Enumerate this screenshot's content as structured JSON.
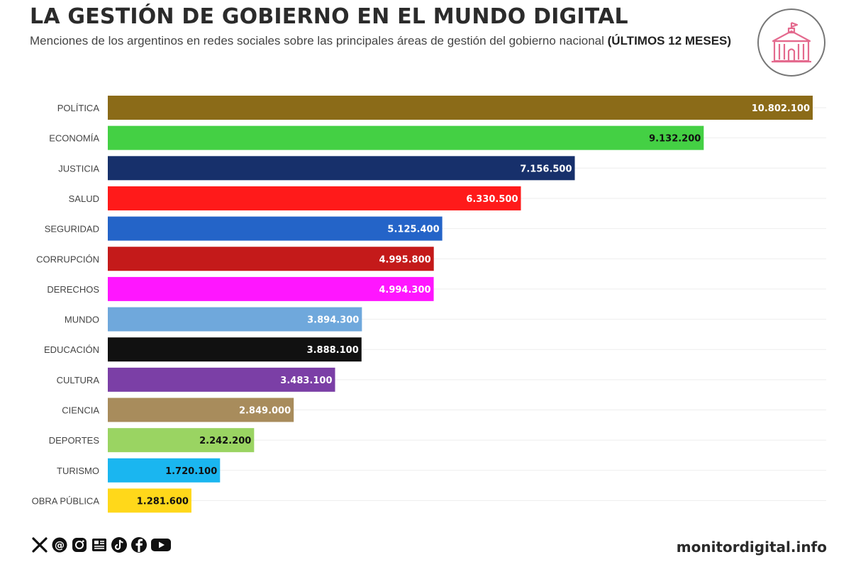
{
  "header": {
    "title": "LA GESTIÓN DE GOBIERNO EN EL MUNDO DIGITAL",
    "subtitle": "Menciones de los argentinos en redes sociales sobre las principales áreas de gestión del gobierno nacional",
    "subtitle_bold": "(ÚLTIMOS 12 MESES)"
  },
  "logo": {
    "icon": "government-building-icon",
    "color": "#e46a8e"
  },
  "social_icons": [
    "x-icon",
    "threads-icon",
    "instagram-icon",
    "news-icon",
    "tiktok-icon",
    "facebook-icon",
    "youtube-icon"
  ],
  "footer": {
    "site": "monitordigital.info"
  },
  "chart_data": {
    "type": "bar",
    "orientation": "horizontal",
    "categories": [
      "POLÍTICA",
      "ECONOMÍA",
      "JUSTICIA",
      "SALUD",
      "SEGURIDAD",
      "CORRUPCIÓN",
      "DERECHOS",
      "MUNDO",
      "EDUCACIÓN",
      "CULTURA",
      "CIENCIA",
      "DEPORTES",
      "TURISMO",
      "OBRA PÚBLICA"
    ],
    "values": [
      10802100,
      9132200,
      7156500,
      6330500,
      5125400,
      4995800,
      4994300,
      3894300,
      3888100,
      3483100,
      2849000,
      2242200,
      1720100,
      1281600
    ],
    "value_labels": [
      "10.802.100",
      "9.132.200",
      "7.156.500",
      "6.330.500",
      "5.125.400",
      "4.995.800",
      "4.994.300",
      "3.894.300",
      "3.888.100",
      "3.483.100",
      "2.849.000",
      "2.242.200",
      "1.720.100",
      "1.281.600"
    ],
    "colors": [
      "#8b6b18",
      "#44d044",
      "#17306b",
      "#ff1a1a",
      "#2464c8",
      "#c41a1a",
      "#ff16ff",
      "#6fa8dc",
      "#111111",
      "#7b3fa6",
      "#a88c5c",
      "#9ad462",
      "#1ab6f0",
      "#ffd81a"
    ],
    "label_colors": [
      "#ffffff",
      "#111111",
      "#ffffff",
      "#ffffff",
      "#ffffff",
      "#ffffff",
      "#ffffff",
      "#ffffff",
      "#ffffff",
      "#ffffff",
      "#ffffff",
      "#111111",
      "#111111",
      "#111111"
    ],
    "xlim": [
      0,
      10802100
    ],
    "grid": true,
    "legend": "none"
  }
}
